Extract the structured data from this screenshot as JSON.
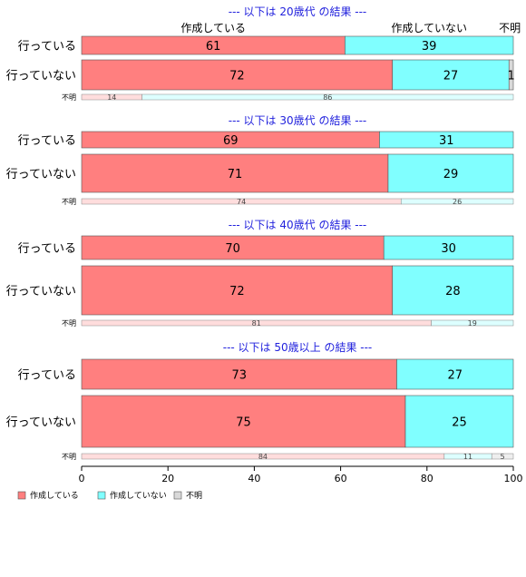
{
  "chart_data": {
    "type": "bar",
    "orientation": "horizontal",
    "stacked": true,
    "xlim": [
      0,
      100
    ],
    "x_ticks": [
      "0",
      "20",
      "40",
      "60",
      "80",
      "100"
    ],
    "series_names": [
      "作成している",
      "作成していない",
      "不明"
    ],
    "colors": [
      "#ff7f7f",
      "#80ffff",
      "#d9d9d9"
    ],
    "light_colors": [
      "#ffdddd",
      "#ddffff",
      "#eeeeee"
    ],
    "top_header": [
      "作成している",
      "作成していない",
      "不明"
    ],
    "legend": {
      "placement": "bottom-left",
      "entries": [
        "作成している",
        "作成していない",
        "不明"
      ]
    },
    "panels": [
      {
        "title": "--- 以下は 20歳代 の結果 ---",
        "rows": [
          {
            "label": "行っている",
            "values": [
              61,
              39,
              0
            ],
            "value_labels": [
              "61",
              "39",
              ""
            ]
          },
          {
            "label": "行っていない",
            "values": [
              72,
              27,
              1
            ],
            "value_labels": [
              "72",
              "27",
              "1"
            ]
          }
        ],
        "unknown": {
          "label": "不明",
          "values": [
            14,
            86,
            0
          ],
          "value_labels": [
            "14",
            "86",
            ""
          ]
        }
      },
      {
        "title": "--- 以下は 30歳代 の結果 ---",
        "rows": [
          {
            "label": "行っている",
            "values": [
              69,
              31,
              0
            ],
            "value_labels": [
              "69",
              "31",
              ""
            ]
          },
          {
            "label": "行っていない",
            "values": [
              71,
              29,
              0
            ],
            "value_labels": [
              "71",
              "29",
              ""
            ]
          }
        ],
        "unknown": {
          "label": "不明",
          "values": [
            74,
            26,
            0
          ],
          "value_labels": [
            "74",
            "26",
            ""
          ]
        }
      },
      {
        "title": "--- 以下は 40歳代 の結果 ---",
        "rows": [
          {
            "label": "行っている",
            "values": [
              70,
              30,
              0
            ],
            "value_labels": [
              "70",
              "30",
              ""
            ]
          },
          {
            "label": "行っていない",
            "values": [
              72,
              28,
              0
            ],
            "value_labels": [
              "72",
              "28",
              ""
            ]
          }
        ],
        "unknown": {
          "label": "不明",
          "values": [
            81,
            19,
            0
          ],
          "value_labels": [
            "81",
            "19",
            ""
          ]
        }
      },
      {
        "title": "--- 以下は 50歳以上 の結果 ---",
        "rows": [
          {
            "label": "行っている",
            "values": [
              73,
              27,
              0
            ],
            "value_labels": [
              "73",
              "27",
              ""
            ]
          },
          {
            "label": "行っていない",
            "values": [
              75,
              25,
              0
            ],
            "value_labels": [
              "75",
              "25",
              ""
            ]
          }
        ],
        "unknown": {
          "label": "不明",
          "values": [
            84,
            11,
            5
          ],
          "value_labels": [
            "84",
            "11",
            "5"
          ]
        }
      }
    ]
  }
}
